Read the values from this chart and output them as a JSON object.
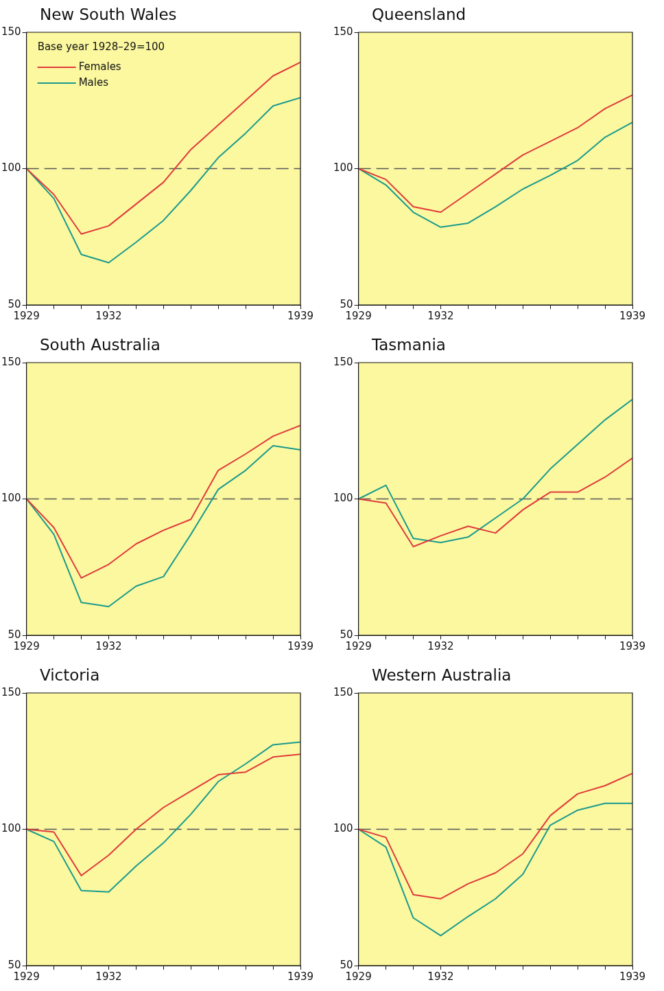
{
  "chart_data": [
    {
      "type": "line",
      "title": "New South Wales",
      "legend_title": "Base year 1928–29=100",
      "legend": "top left",
      "x": [
        1929,
        1930,
        1931,
        1932,
        1933,
        1934,
        1935,
        1936,
        1937,
        1938,
        1939
      ],
      "xlim": [
        1929,
        1939
      ],
      "xticks": [
        1929,
        {
          "value": 1930,
          "label": null
        },
        {
          "value": 1931,
          "label": null
        },
        1932,
        {
          "value": 1933,
          "label": null
        },
        {
          "value": 1934,
          "label": null
        },
        {
          "value": 1935,
          "label": null
        },
        {
          "value": 1936,
          "label": null
        },
        {
          "value": 1937,
          "label": null
        },
        {
          "value": 1938,
          "label": null
        },
        1939
      ],
      "ylim": [
        50,
        150
      ],
      "yticks": [
        50,
        100,
        150
      ],
      "grid": false,
      "ref_lines": [
        {
          "axis": "y",
          "value": 100,
          "color": "#555555",
          "line_style": "dashed"
        }
      ],
      "series": [
        {
          "name": "Females",
          "color": "#e03a3a",
          "values": [
            100,
            90.5,
            76,
            79,
            87,
            95,
            107,
            116,
            125,
            134,
            139
          ]
        },
        {
          "name": "Males",
          "color": "#1a9a8c",
          "values": [
            100,
            89,
            68.5,
            65.5,
            73,
            81,
            92,
            104,
            113,
            123,
            126
          ]
        }
      ]
    },
    {
      "type": "line",
      "title": "Queensland",
      "x": [
        1929,
        1930,
        1931,
        1932,
        1933,
        1934,
        1935,
        1936,
        1937,
        1938,
        1939
      ],
      "xlim": [
        1929,
        1939
      ],
      "xticks": [
        1929,
        {
          "value": 1930,
          "label": null
        },
        {
          "value": 1931,
          "label": null
        },
        1932,
        {
          "value": 1933,
          "label": null
        },
        {
          "value": 1934,
          "label": null
        },
        {
          "value": 1935,
          "label": null
        },
        {
          "value": 1936,
          "label": null
        },
        {
          "value": 1937,
          "label": null
        },
        {
          "value": 1938,
          "label": null
        },
        1939
      ],
      "ylim": [
        50,
        150
      ],
      "yticks": [
        50,
        100,
        150
      ],
      "grid": false,
      "ref_lines": [
        {
          "axis": "y",
          "value": 100,
          "color": "#555555",
          "line_style": "dashed"
        }
      ],
      "series": [
        {
          "color": "#e03a3a",
          "values": [
            100,
            96,
            86,
            84,
            91,
            98,
            105,
            110,
            115,
            122,
            127
          ]
        },
        {
          "color": "#1a9a8c",
          "values": [
            100,
            94,
            84,
            78.5,
            80,
            86,
            92.5,
            97.5,
            103,
            111.5,
            117
          ]
        }
      ]
    },
    {
      "type": "line",
      "title": "South Australia",
      "x": [
        1929,
        1930,
        1931,
        1932,
        1933,
        1934,
        1935,
        1936,
        1937,
        1938,
        1939
      ],
      "xlim": [
        1929,
        1939
      ],
      "xticks": [
        1929,
        {
          "value": 1930,
          "label": null
        },
        {
          "value": 1931,
          "label": null
        },
        1932,
        {
          "value": 1933,
          "label": null
        },
        {
          "value": 1934,
          "label": null
        },
        {
          "value": 1935,
          "label": null
        },
        {
          "value": 1936,
          "label": null
        },
        {
          "value": 1937,
          "label": null
        },
        {
          "value": 1938,
          "label": null
        },
        1939
      ],
      "ylim": [
        50,
        150
      ],
      "yticks": [
        50,
        100,
        150
      ],
      "grid": false,
      "ref_lines": [
        {
          "axis": "y",
          "value": 100,
          "color": "#555555",
          "line_style": "dashed"
        }
      ],
      "series": [
        {
          "color": "#e03a3a",
          "values": [
            100,
            89.5,
            71,
            76,
            83.5,
            88.5,
            92.5,
            110.5,
            116.5,
            123,
            127
          ]
        },
        {
          "color": "#1a9a8c",
          "values": [
            100,
            87,
            62,
            60.5,
            68,
            71.5,
            87,
            103.5,
            110.5,
            119.5,
            118
          ]
        }
      ]
    },
    {
      "type": "line",
      "title": "Tasmania",
      "x": [
        1929,
        1930,
        1931,
        1932,
        1933,
        1934,
        1935,
        1936,
        1937,
        1938,
        1939
      ],
      "xlim": [
        1929,
        1939
      ],
      "xticks": [
        1929,
        {
          "value": 1930,
          "label": null
        },
        {
          "value": 1931,
          "label": null
        },
        1932,
        {
          "value": 1933,
          "label": null
        },
        {
          "value": 1934,
          "label": null
        },
        {
          "value": 1935,
          "label": null
        },
        {
          "value": 1936,
          "label": null
        },
        {
          "value": 1937,
          "label": null
        },
        {
          "value": 1938,
          "label": null
        },
        1939
      ],
      "ylim": [
        50,
        150
      ],
      "yticks": [
        50,
        100,
        150
      ],
      "grid": false,
      "ref_lines": [
        {
          "axis": "y",
          "value": 100,
          "color": "#555555",
          "line_style": "dashed"
        }
      ],
      "series": [
        {
          "color": "#e03a3a",
          "values": [
            100,
            98.5,
            82.5,
            86.5,
            90,
            87.5,
            96,
            102.5,
            102.5,
            108,
            115
          ]
        },
        {
          "color": "#1a9a8c",
          "values": [
            100,
            105,
            85.5,
            84,
            86,
            93,
            100,
            111,
            120,
            129,
            136.5
          ]
        }
      ]
    },
    {
      "type": "line",
      "title": "Victoria",
      "x": [
        1929,
        1930,
        1931,
        1932,
        1933,
        1934,
        1935,
        1936,
        1937,
        1938,
        1939
      ],
      "xlim": [
        1929,
        1939
      ],
      "xticks": [
        1929,
        {
          "value": 1930,
          "label": null
        },
        {
          "value": 1931,
          "label": null
        },
        1932,
        {
          "value": 1933,
          "label": null
        },
        {
          "value": 1934,
          "label": null
        },
        {
          "value": 1935,
          "label": null
        },
        {
          "value": 1936,
          "label": null
        },
        {
          "value": 1937,
          "label": null
        },
        {
          "value": 1938,
          "label": null
        },
        1939
      ],
      "ylim": [
        50,
        150
      ],
      "yticks": [
        50,
        100,
        150
      ],
      "grid": false,
      "ref_lines": [
        {
          "axis": "y",
          "value": 100,
          "color": "#555555",
          "line_style": "dashed"
        }
      ],
      "series": [
        {
          "color": "#e03a3a",
          "values": [
            100,
            99,
            83,
            90.5,
            100,
            108,
            114,
            120,
            121,
            126.5,
            127.5
          ]
        },
        {
          "color": "#1a9a8c",
          "values": [
            100,
            95.5,
            77.5,
            77,
            86.5,
            95,
            105.5,
            117.5,
            124,
            131,
            132
          ]
        }
      ]
    },
    {
      "type": "line",
      "title": "Western Australia",
      "x": [
        1929,
        1930,
        1931,
        1932,
        1933,
        1934,
        1935,
        1936,
        1937,
        1938,
        1939
      ],
      "xlim": [
        1929,
        1939
      ],
      "xticks": [
        1929,
        {
          "value": 1930,
          "label": null
        },
        {
          "value": 1931,
          "label": null
        },
        1932,
        {
          "value": 1933,
          "label": null
        },
        {
          "value": 1934,
          "label": null
        },
        {
          "value": 1935,
          "label": null
        },
        {
          "value": 1936,
          "label": null
        },
        {
          "value": 1937,
          "label": null
        },
        {
          "value": 1938,
          "label": null
        },
        1939
      ],
      "ylim": [
        50,
        150
      ],
      "yticks": [
        50,
        100,
        150
      ],
      "grid": false,
      "ref_lines": [
        {
          "axis": "y",
          "value": 100,
          "color": "#555555",
          "line_style": "dashed"
        }
      ],
      "series": [
        {
          "color": "#e03a3a",
          "values": [
            100,
            97,
            76,
            74.5,
            80,
            84,
            91,
            105,
            113,
            116,
            120.5
          ]
        },
        {
          "color": "#1a9a8c",
          "values": [
            100,
            93.5,
            67.5,
            61,
            68,
            74.5,
            83.5,
            101.5,
            107,
            109.5,
            109.5
          ]
        }
      ]
    }
  ]
}
